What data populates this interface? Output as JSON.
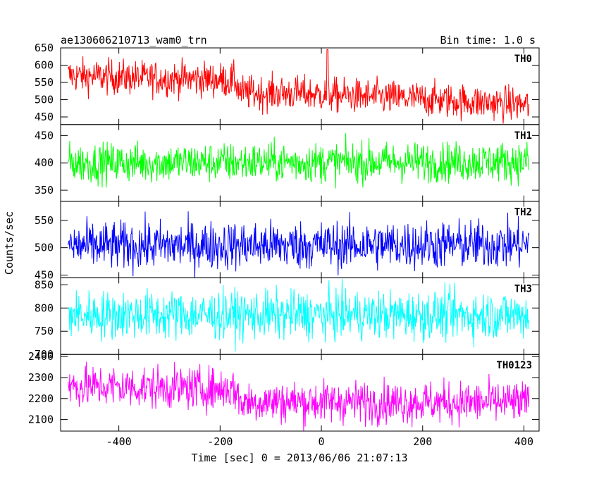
{
  "chart_data": {
    "type": "line",
    "title": "ae130606210713_wam0_trn",
    "subtitle": "Bin time: 1.0 s",
    "xlabel": "Time [sec] 0 = 2013/06/06 21:07:13",
    "ylabel": "Counts/sec",
    "xlim": [
      -515,
      430
    ],
    "x_ticks": [
      -400,
      -200,
      0,
      200,
      400
    ],
    "x_start": -500,
    "x_end": 410,
    "bin_time": 1.0,
    "panels": [
      {
        "name": "TH0",
        "color": "#ff0000",
        "ylim": [
          428,
          650
        ],
        "y_ticks": [
          450,
          500,
          550,
          600,
          650
        ],
        "level_points": [
          [
            -500,
            570
          ],
          [
            -340,
            562
          ],
          [
            -240,
            560
          ],
          [
            -170,
            555
          ],
          [
            -160,
            520
          ],
          [
            -40,
            518
          ],
          [
            0,
            515
          ],
          [
            100,
            508
          ],
          [
            220,
            500
          ],
          [
            410,
            485
          ]
        ],
        "noise": 25,
        "spikes": [
          {
            "x": 12,
            "value": 645
          }
        ]
      },
      {
        "name": "TH1",
        "color": "#00ff00",
        "ylim": [
          330,
          470
        ],
        "y_ticks": [
          350,
          400,
          450
        ],
        "level_points": [
          [
            -500,
            400
          ],
          [
            410,
            402
          ]
        ],
        "noise": 18,
        "spikes": []
      },
      {
        "name": "TH2",
        "color": "#0000ff",
        "ylim": [
          445,
          585
        ],
        "y_ticks": [
          450,
          500,
          550
        ],
        "level_points": [
          [
            -500,
            503
          ],
          [
            410,
            506
          ]
        ],
        "noise": 22,
        "spikes": []
      },
      {
        "name": "TH3",
        "color": "#00ffff",
        "ylim": [
          700,
          865
        ],
        "y_ticks": [
          700,
          750,
          800,
          850
        ],
        "level_points": [
          [
            -500,
            785
          ],
          [
            410,
            785
          ]
        ],
        "noise": 26,
        "spikes": []
      },
      {
        "name": "TH0123",
        "color": "#ff00ff",
        "ylim": [
          2045,
          2410
        ],
        "y_ticks": [
          2100,
          2200,
          2300,
          2400
        ],
        "level_points": [
          [
            -500,
            2260
          ],
          [
            -170,
            2245
          ],
          [
            -160,
            2185
          ],
          [
            410,
            2180
          ]
        ],
        "noise": 50,
        "spikes": []
      }
    ]
  }
}
